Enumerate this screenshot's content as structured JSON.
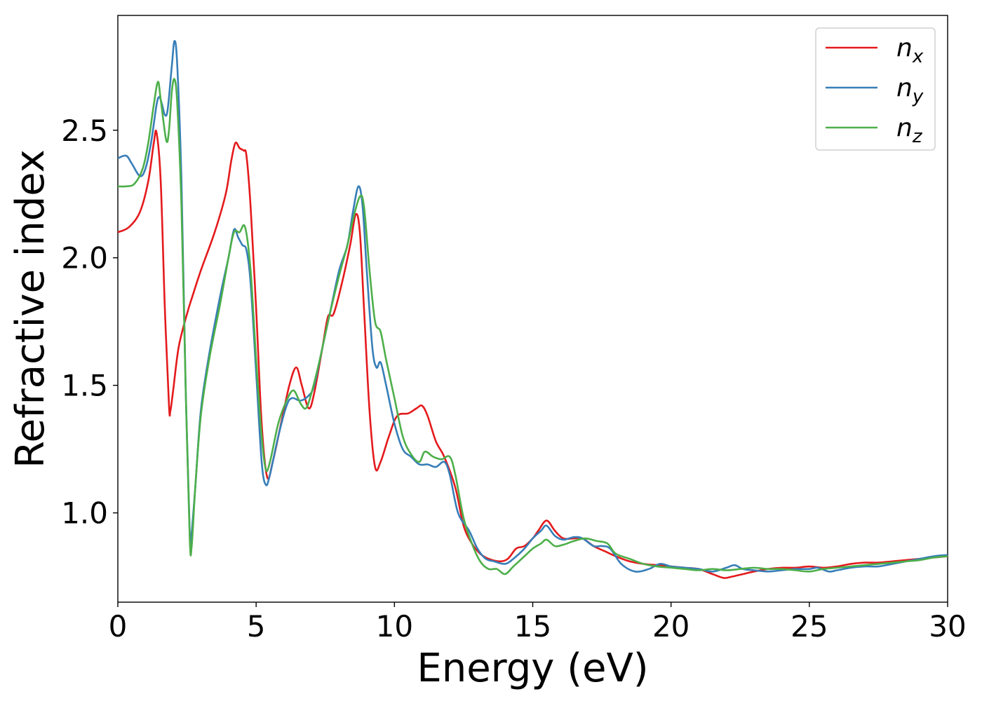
{
  "chart_data": {
    "type": "line",
    "xlabel": "Energy (eV)",
    "ylabel": "Refractive index",
    "xlim": [
      0,
      30
    ],
    "ylim": [
      0.65,
      2.95
    ],
    "x_ticks": [
      0,
      5,
      10,
      15,
      20,
      25,
      30
    ],
    "x_tick_labels": [
      "0",
      "5",
      "10",
      "15",
      "20",
      "25",
      "30"
    ],
    "y_ticks": [
      1.0,
      1.5,
      2.0,
      2.5
    ],
    "y_tick_labels": [
      "1.0",
      "1.5",
      "2.0",
      "2.5"
    ],
    "grid": false,
    "legend_position": "top-right",
    "series": [
      {
        "name": "n",
        "subscript": "x",
        "color": "#e41a1c",
        "points": [
          [
            0,
            2.1
          ],
          [
            0.4,
            2.12
          ],
          [
            0.8,
            2.18
          ],
          [
            1.1,
            2.3
          ],
          [
            1.3,
            2.45
          ],
          [
            1.4,
            2.49
          ],
          [
            1.55,
            2.3
          ],
          [
            1.7,
            1.8
          ],
          [
            1.85,
            1.42
          ],
          [
            1.9,
            1.4
          ],
          [
            2.0,
            1.48
          ],
          [
            2.2,
            1.65
          ],
          [
            2.5,
            1.78
          ],
          [
            2.7,
            1.85
          ],
          [
            3.0,
            1.95
          ],
          [
            3.5,
            2.1
          ],
          [
            3.9,
            2.25
          ],
          [
            4.1,
            2.38
          ],
          [
            4.25,
            2.45
          ],
          [
            4.4,
            2.43
          ],
          [
            4.55,
            2.42
          ],
          [
            4.65,
            2.4
          ],
          [
            4.8,
            2.2
          ],
          [
            5.0,
            1.8
          ],
          [
            5.2,
            1.35
          ],
          [
            5.4,
            1.14
          ],
          [
            5.6,
            1.2
          ],
          [
            5.9,
            1.35
          ],
          [
            6.2,
            1.5
          ],
          [
            6.45,
            1.57
          ],
          [
            6.65,
            1.5
          ],
          [
            6.9,
            1.41
          ],
          [
            7.1,
            1.47
          ],
          [
            7.4,
            1.65
          ],
          [
            7.6,
            1.77
          ],
          [
            7.8,
            1.78
          ],
          [
            8.1,
            1.9
          ],
          [
            8.4,
            2.05
          ],
          [
            8.6,
            2.17
          ],
          [
            8.75,
            2.1
          ],
          [
            8.9,
            1.8
          ],
          [
            9.1,
            1.4
          ],
          [
            9.3,
            1.18
          ],
          [
            9.5,
            1.2
          ],
          [
            9.8,
            1.3
          ],
          [
            10.1,
            1.38
          ],
          [
            10.5,
            1.39
          ],
          [
            10.8,
            1.41
          ],
          [
            11.0,
            1.42
          ],
          [
            11.2,
            1.38
          ],
          [
            11.5,
            1.28
          ],
          [
            11.8,
            1.22
          ],
          [
            12.2,
            1.1
          ],
          [
            12.5,
            0.95
          ],
          [
            12.8,
            0.88
          ],
          [
            13.1,
            0.84
          ],
          [
            13.4,
            0.82
          ],
          [
            13.8,
            0.81
          ],
          [
            14.1,
            0.82
          ],
          [
            14.4,
            0.86
          ],
          [
            14.7,
            0.87
          ],
          [
            15.0,
            0.9
          ],
          [
            15.2,
            0.93
          ],
          [
            15.5,
            0.97
          ],
          [
            15.8,
            0.93
          ],
          [
            16.1,
            0.9
          ],
          [
            16.5,
            0.9
          ],
          [
            16.8,
            0.9
          ],
          [
            17.2,
            0.87
          ],
          [
            17.6,
            0.85
          ],
          [
            18.0,
            0.83
          ],
          [
            18.5,
            0.81
          ],
          [
            19.0,
            0.8
          ],
          [
            19.5,
            0.795
          ],
          [
            20.0,
            0.79
          ],
          [
            20.5,
            0.785
          ],
          [
            21.0,
            0.78
          ],
          [
            21.5,
            0.76
          ],
          [
            21.9,
            0.745
          ],
          [
            22.2,
            0.75
          ],
          [
            22.6,
            0.76
          ],
          [
            23.0,
            0.77
          ],
          [
            23.5,
            0.78
          ],
          [
            24.0,
            0.785
          ],
          [
            24.5,
            0.785
          ],
          [
            25.0,
            0.79
          ],
          [
            25.5,
            0.785
          ],
          [
            26.0,
            0.79
          ],
          [
            26.5,
            0.8
          ],
          [
            27.0,
            0.805
          ],
          [
            27.5,
            0.805
          ],
          [
            28.0,
            0.81
          ],
          [
            28.5,
            0.815
          ],
          [
            29.0,
            0.82
          ],
          [
            29.5,
            0.825
          ],
          [
            30.0,
            0.83
          ]
        ]
      },
      {
        "name": "n",
        "subscript": "y",
        "color": "#377eb8",
        "points": [
          [
            0,
            2.39
          ],
          [
            0.3,
            2.4
          ],
          [
            0.5,
            2.37
          ],
          [
            0.8,
            2.32
          ],
          [
            1.0,
            2.35
          ],
          [
            1.2,
            2.45
          ],
          [
            1.4,
            2.6
          ],
          [
            1.5,
            2.63
          ],
          [
            1.6,
            2.6
          ],
          [
            1.7,
            2.56
          ],
          [
            1.8,
            2.58
          ],
          [
            1.95,
            2.75
          ],
          [
            2.05,
            2.85
          ],
          [
            2.15,
            2.75
          ],
          [
            2.3,
            2.3
          ],
          [
            2.45,
            1.5
          ],
          [
            2.6,
            0.92
          ],
          [
            2.65,
            0.9
          ],
          [
            2.8,
            1.1
          ],
          [
            3.0,
            1.4
          ],
          [
            3.3,
            1.62
          ],
          [
            3.7,
            1.85
          ],
          [
            4.0,
            2.0
          ],
          [
            4.2,
            2.11
          ],
          [
            4.35,
            2.08
          ],
          [
            4.5,
            2.05
          ],
          [
            4.65,
            2.03
          ],
          [
            4.8,
            1.9
          ],
          [
            5.0,
            1.55
          ],
          [
            5.2,
            1.2
          ],
          [
            5.35,
            1.11
          ],
          [
            5.5,
            1.15
          ],
          [
            5.8,
            1.3
          ],
          [
            6.1,
            1.42
          ],
          [
            6.3,
            1.45
          ],
          [
            6.6,
            1.44
          ],
          [
            6.9,
            1.46
          ],
          [
            7.1,
            1.5
          ],
          [
            7.4,
            1.65
          ],
          [
            7.7,
            1.8
          ],
          [
            8.0,
            1.95
          ],
          [
            8.3,
            2.05
          ],
          [
            8.5,
            2.18
          ],
          [
            8.7,
            2.28
          ],
          [
            8.85,
            2.2
          ],
          [
            9.0,
            1.95
          ],
          [
            9.2,
            1.65
          ],
          [
            9.35,
            1.57
          ],
          [
            9.5,
            1.59
          ],
          [
            9.7,
            1.5
          ],
          [
            10.0,
            1.35
          ],
          [
            10.3,
            1.25
          ],
          [
            10.6,
            1.22
          ],
          [
            10.9,
            1.19
          ],
          [
            11.2,
            1.19
          ],
          [
            11.5,
            1.18
          ],
          [
            11.8,
            1.2
          ],
          [
            12.0,
            1.15
          ],
          [
            12.3,
            1.0
          ],
          [
            12.7,
            0.93
          ],
          [
            13.0,
            0.86
          ],
          [
            13.3,
            0.82
          ],
          [
            13.6,
            0.81
          ],
          [
            14.0,
            0.8
          ],
          [
            14.3,
            0.82
          ],
          [
            14.7,
            0.86
          ],
          [
            15.0,
            0.9
          ],
          [
            15.3,
            0.93
          ],
          [
            15.5,
            0.95
          ],
          [
            15.8,
            0.91
          ],
          [
            16.1,
            0.895
          ],
          [
            16.5,
            0.905
          ],
          [
            16.8,
            0.9
          ],
          [
            17.2,
            0.87
          ],
          [
            17.5,
            0.87
          ],
          [
            17.8,
            0.86
          ],
          [
            18.2,
            0.8
          ],
          [
            18.7,
            0.77
          ],
          [
            19.2,
            0.78
          ],
          [
            19.6,
            0.8
          ],
          [
            20.0,
            0.79
          ],
          [
            20.5,
            0.785
          ],
          [
            21.0,
            0.78
          ],
          [
            21.5,
            0.77
          ],
          [
            22.0,
            0.785
          ],
          [
            22.3,
            0.795
          ],
          [
            22.6,
            0.78
          ],
          [
            23.0,
            0.775
          ],
          [
            23.5,
            0.77
          ],
          [
            24.0,
            0.775
          ],
          [
            24.5,
            0.78
          ],
          [
            25.0,
            0.78
          ],
          [
            25.3,
            0.785
          ],
          [
            25.7,
            0.77
          ],
          [
            26.0,
            0.775
          ],
          [
            26.5,
            0.785
          ],
          [
            27.0,
            0.79
          ],
          [
            27.5,
            0.79
          ],
          [
            28.0,
            0.8
          ],
          [
            28.5,
            0.81
          ],
          [
            29.0,
            0.82
          ],
          [
            29.5,
            0.83
          ],
          [
            30.0,
            0.835
          ]
        ]
      },
      {
        "name": "n",
        "subscript": "z",
        "color": "#4daf4a",
        "points": [
          [
            0,
            2.28
          ],
          [
            0.3,
            2.28
          ],
          [
            0.6,
            2.29
          ],
          [
            0.9,
            2.35
          ],
          [
            1.1,
            2.45
          ],
          [
            1.3,
            2.6
          ],
          [
            1.45,
            2.69
          ],
          [
            1.55,
            2.62
          ],
          [
            1.75,
            2.46
          ],
          [
            1.85,
            2.5
          ],
          [
            1.95,
            2.65
          ],
          [
            2.05,
            2.7
          ],
          [
            2.15,
            2.6
          ],
          [
            2.3,
            2.2
          ],
          [
            2.45,
            1.5
          ],
          [
            2.6,
            0.9
          ],
          [
            2.67,
            0.87
          ],
          [
            2.8,
            1.1
          ],
          [
            3.0,
            1.38
          ],
          [
            3.3,
            1.6
          ],
          [
            3.7,
            1.82
          ],
          [
            4.0,
            2.0
          ],
          [
            4.2,
            2.1
          ],
          [
            4.4,
            2.1
          ],
          [
            4.6,
            2.12
          ],
          [
            4.8,
            1.95
          ],
          [
            5.0,
            1.6
          ],
          [
            5.2,
            1.3
          ],
          [
            5.35,
            1.17
          ],
          [
            5.5,
            1.2
          ],
          [
            5.8,
            1.35
          ],
          [
            6.1,
            1.44
          ],
          [
            6.35,
            1.48
          ],
          [
            6.6,
            1.43
          ],
          [
            6.8,
            1.41
          ],
          [
            7.0,
            1.47
          ],
          [
            7.3,
            1.6
          ],
          [
            7.6,
            1.75
          ],
          [
            8.0,
            1.93
          ],
          [
            8.3,
            2.05
          ],
          [
            8.5,
            2.15
          ],
          [
            8.75,
            2.24
          ],
          [
            8.9,
            2.2
          ],
          [
            9.1,
            1.95
          ],
          [
            9.3,
            1.75
          ],
          [
            9.5,
            1.71
          ],
          [
            9.7,
            1.6
          ],
          [
            10.0,
            1.45
          ],
          [
            10.3,
            1.3
          ],
          [
            10.6,
            1.23
          ],
          [
            10.9,
            1.2
          ],
          [
            11.1,
            1.24
          ],
          [
            11.4,
            1.22
          ],
          [
            11.7,
            1.21
          ],
          [
            12.0,
            1.22
          ],
          [
            12.2,
            1.15
          ],
          [
            12.5,
            0.98
          ],
          [
            12.8,
            0.88
          ],
          [
            13.1,
            0.81
          ],
          [
            13.4,
            0.78
          ],
          [
            13.7,
            0.78
          ],
          [
            14.0,
            0.76
          ],
          [
            14.3,
            0.79
          ],
          [
            14.7,
            0.83
          ],
          [
            15.0,
            0.86
          ],
          [
            15.3,
            0.88
          ],
          [
            15.5,
            0.895
          ],
          [
            15.8,
            0.87
          ],
          [
            16.1,
            0.875
          ],
          [
            16.5,
            0.89
          ],
          [
            16.9,
            0.9
          ],
          [
            17.3,
            0.89
          ],
          [
            17.7,
            0.88
          ],
          [
            18.0,
            0.84
          ],
          [
            18.5,
            0.82
          ],
          [
            19.0,
            0.8
          ],
          [
            19.5,
            0.79
          ],
          [
            20.0,
            0.785
          ],
          [
            20.5,
            0.78
          ],
          [
            21.0,
            0.775
          ],
          [
            21.5,
            0.78
          ],
          [
            22.0,
            0.775
          ],
          [
            22.5,
            0.78
          ],
          [
            23.0,
            0.785
          ],
          [
            23.5,
            0.78
          ],
          [
            24.0,
            0.78
          ],
          [
            24.5,
            0.775
          ],
          [
            25.0,
            0.77
          ],
          [
            25.5,
            0.78
          ],
          [
            26.0,
            0.785
          ],
          [
            26.5,
            0.79
          ],
          [
            27.0,
            0.795
          ],
          [
            27.5,
            0.8
          ],
          [
            28.0,
            0.805
          ],
          [
            28.5,
            0.81
          ],
          [
            29.0,
            0.815
          ],
          [
            29.5,
            0.825
          ],
          [
            30.0,
            0.83
          ]
        ]
      }
    ]
  }
}
